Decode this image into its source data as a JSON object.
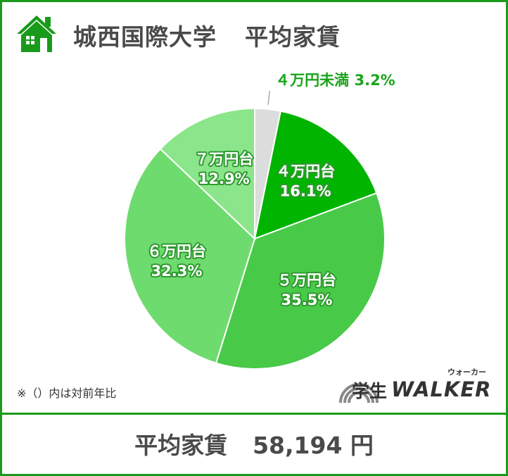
{
  "header": {
    "university": "城西国際大学",
    "subject": "平均家賃",
    "icon": "house-icon"
  },
  "chart_data": {
    "type": "pie",
    "slices": [
      {
        "label": "４万円未満",
        "value": 3.2,
        "display": "3.2%",
        "color": "#dcdcdc"
      },
      {
        "label": "４万円台",
        "value": 16.1,
        "display": "16.1%",
        "color": "#00b400"
      },
      {
        "label": "５万円台",
        "value": 35.5,
        "display": "35.5%",
        "color": "#48ca48"
      },
      {
        "label": "６万円台",
        "value": 32.3,
        "display": "32.3%",
        "color": "#6edb6e"
      },
      {
        "label": "７万円台",
        "value": 12.9,
        "display": "12.9%",
        "color": "#8be58b"
      }
    ]
  },
  "note": "※（）内は対前年比",
  "logo": {
    "gakusei": "学生",
    "brand": "WALKER",
    "kana": "ウォーカー"
  },
  "footer": {
    "label": "平均家賃",
    "value": "58,194 円"
  },
  "colors": {
    "border": "#1a9a1a",
    "accent": "#1aa51a",
    "text": "#4a4a4a"
  }
}
